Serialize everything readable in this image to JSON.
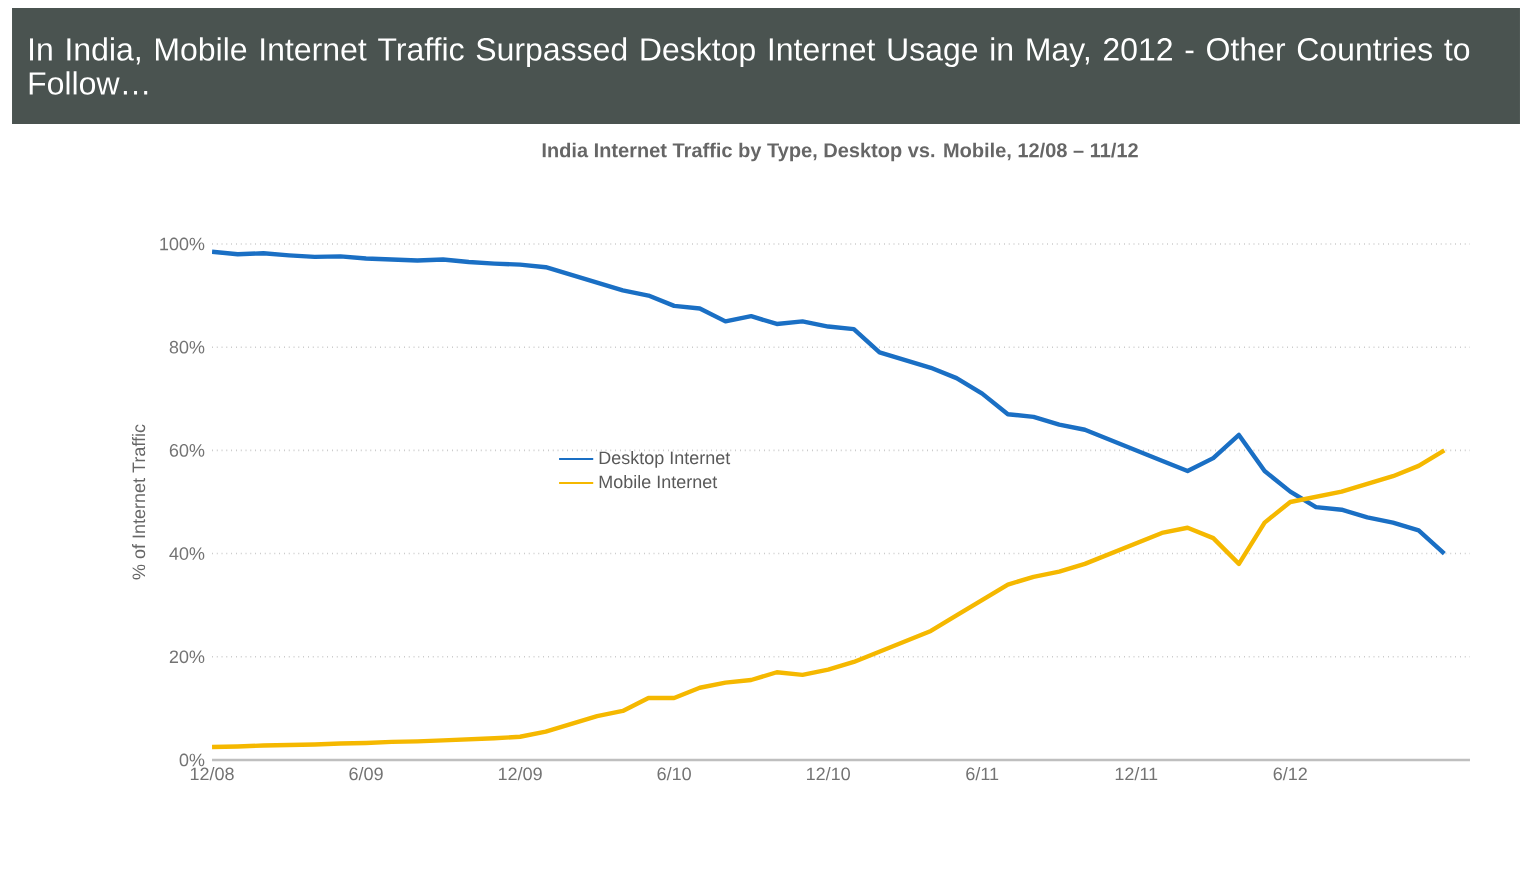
{
  "chart_data": {
    "type": "line",
    "title": "In India, Mobile Internet Traffic Surpassed Desktop Internet Usage in May, 2012 - Other Countries to Follow…",
    "subtitle": "India Internet Traffic by Type, Desktop vs. Mobile, 12/08 – 11/12",
    "ylabel": "% of Internet Traffic",
    "x": [
      "2008-12",
      "2009-01",
      "2009-02",
      "2009-03",
      "2009-04",
      "2009-05",
      "2009-06",
      "2009-07",
      "2009-08",
      "2009-09",
      "2009-10",
      "2009-11",
      "2009-12",
      "2010-01",
      "2010-02",
      "2010-03",
      "2010-04",
      "2010-05",
      "2010-06",
      "2010-07",
      "2010-08",
      "2010-09",
      "2010-10",
      "2010-11",
      "2010-12",
      "2011-01",
      "2011-02",
      "2011-03",
      "2011-04",
      "2011-05",
      "2011-06",
      "2011-07",
      "2011-08",
      "2011-09",
      "2011-10",
      "2011-11",
      "2011-12",
      "2012-01",
      "2012-02",
      "2012-03",
      "2012-04",
      "2012-05",
      "2012-06",
      "2012-07",
      "2012-08",
      "2012-09",
      "2012-10",
      "2012-11",
      "2012-12"
    ],
    "series": [
      {
        "name": "Desktop Internet",
        "color": "#1a6fc4",
        "values": [
          98.5,
          98,
          98.2,
          97.8,
          97.5,
          97.6,
          97.2,
          97,
          96.8,
          97,
          96.5,
          96.2,
          96,
          95.5,
          94,
          92.5,
          91,
          90,
          88,
          87.5,
          85,
          86,
          84.5,
          85,
          84,
          83.5,
          79,
          77.5,
          76,
          74,
          71,
          67,
          66.5,
          65,
          64,
          62,
          60,
          58,
          56,
          58.5,
          63,
          56,
          52,
          49,
          48.5,
          47,
          46,
          44.5,
          40
        ]
      },
      {
        "name": "Mobile Internet",
        "color": "#f5b800",
        "values": [
          2.5,
          2.6,
          2.8,
          2.9,
          3,
          3.2,
          3.3,
          3.5,
          3.6,
          3.8,
          4,
          4.2,
          4.5,
          5.5,
          7,
          8.5,
          9.5,
          12,
          12,
          14,
          15,
          15.5,
          17,
          16.5,
          17.5,
          19,
          21,
          23,
          25,
          28,
          31,
          34,
          35.5,
          36.5,
          38,
          40,
          42,
          44,
          45,
          43,
          38,
          46,
          50,
          51,
          52,
          53.5,
          55,
          57,
          60
        ]
      }
    ],
    "xlim": [
      "2008-12",
      "2013-01"
    ],
    "xticks": [
      {
        "value": "2008-12",
        "label": "12/08"
      },
      {
        "value": "2009-06",
        "label": "6/09"
      },
      {
        "value": "2009-12",
        "label": "12/09"
      },
      {
        "value": "2010-06",
        "label": "6/10"
      },
      {
        "value": "2010-12",
        "label": "12/10"
      },
      {
        "value": "2011-06",
        "label": "6/11"
      },
      {
        "value": "2011-12",
        "label": "12/11"
      },
      {
        "value": "2012-06",
        "label": "6/12"
      }
    ],
    "ylim": [
      0,
      100
    ],
    "yticks": [
      {
        "value": 0,
        "label": "0%"
      },
      {
        "value": 20,
        "label": "20%"
      },
      {
        "value": 40,
        "label": "40%"
      },
      {
        "value": 60,
        "label": "60%"
      },
      {
        "value": 80,
        "label": "80%"
      },
      {
        "value": 100,
        "label": "100%"
      }
    ],
    "grid": "y",
    "legend": "center",
    "line_style": "solid",
    "marker": "none"
  }
}
